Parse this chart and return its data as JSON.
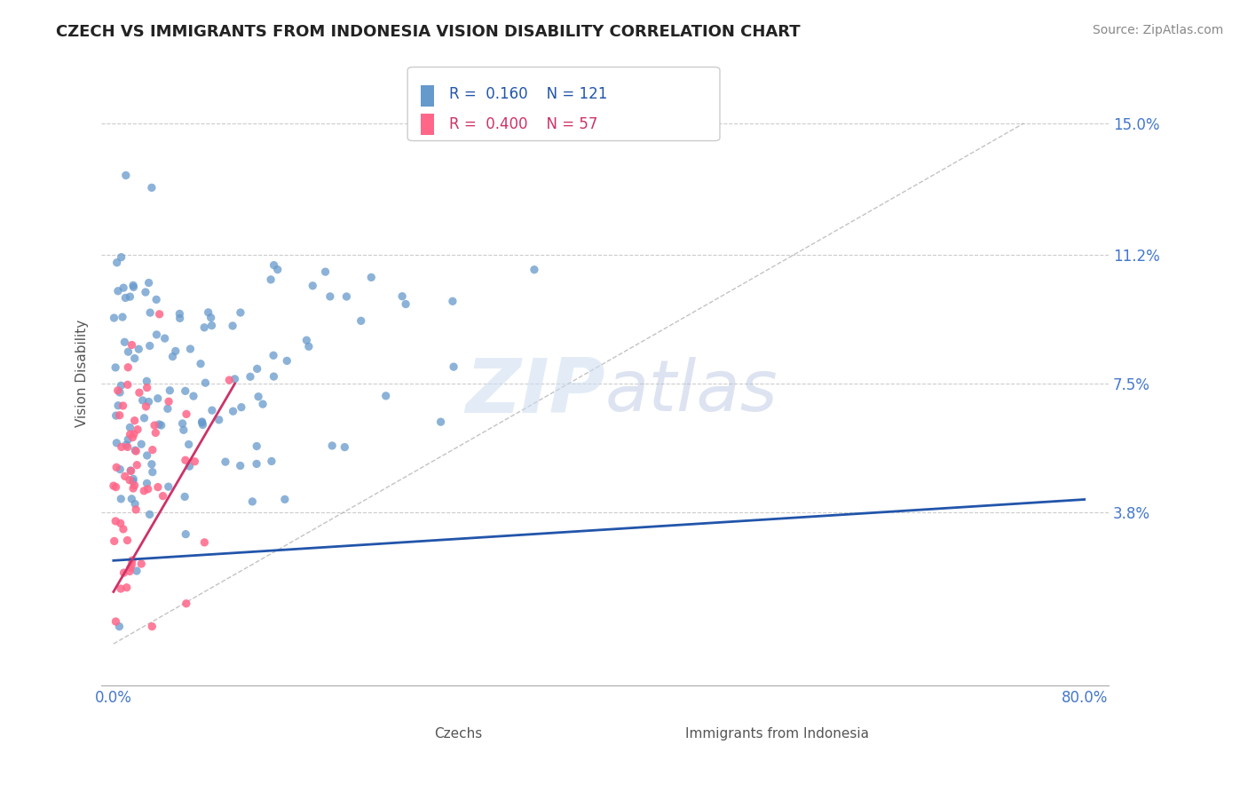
{
  "title": "CZECH VS IMMIGRANTS FROM INDONESIA VISION DISABILITY CORRELATION CHART",
  "source": "Source: ZipAtlas.com",
  "xlabel": "",
  "ylabel": "Vision Disability",
  "xlim": [
    -0.01,
    0.82
  ],
  "ylim": [
    -0.012,
    0.168
  ],
  "yticks": [
    0.038,
    0.075,
    0.112,
    0.15
  ],
  "ytick_labels": [
    "3.8%",
    "7.5%",
    "11.2%",
    "15.0%"
  ],
  "xticks": [
    0.0,
    0.8
  ],
  "xtick_labels": [
    "0.0%",
    "80.0%"
  ],
  "czech_color": "#6699CC",
  "indonesia_color": "#FF6688",
  "czech_R": 0.16,
  "czech_N": 121,
  "indonesia_R": 0.4,
  "indonesia_N": 57,
  "trend_line_czech_color": "#2255AA",
  "trend_line_indonesia_color": "#CC3366",
  "background_color": "#FFFFFF",
  "title_fontsize": 13,
  "legend_fontsize": 12,
  "tick_fontsize": 12,
  "ylabel_fontsize": 11,
  "source_fontsize": 10,
  "czech_seed": 42,
  "indonesia_seed": 7
}
